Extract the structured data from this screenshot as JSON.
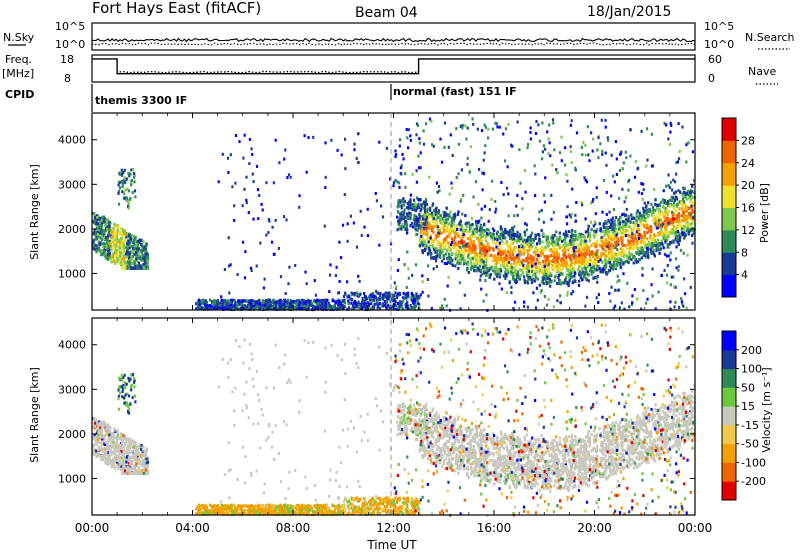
{
  "header": {
    "title": "Fort Hays East (fitACF)",
    "beam": "Beam 04",
    "date": "18/Jan/2015"
  },
  "top_panels": {
    "nsky_label": "N.Sky",
    "nsky_ticks": [
      "10^5",
      "10^0"
    ],
    "nsearch_label": "N.Search",
    "nsearch_ticks": [
      "10^5",
      "10^0"
    ],
    "freq_label": "Freq.",
    "freq_unit": "[MHz]",
    "freq_ticks": [
      "18",
      "8"
    ],
    "nave_label": "Nave",
    "nave_ticks": [
      "60",
      "0"
    ],
    "cpid_label": "CPID",
    "cpid_modes": [
      {
        "name": "themis 3300 IF",
        "start_hour": 0,
        "end_hour": 12
      },
      {
        "name": "normal (fast) 151 IF",
        "start_hour": 12,
        "end_hour": 24
      }
    ],
    "freq_series": [
      {
        "start_hour": 0,
        "end_hour": 1.0,
        "freq_mhz": 16.5
      },
      {
        "start_hour": 1.0,
        "end_hour": 13.0,
        "freq_mhz": 10.8
      },
      {
        "start_hour": 13.0,
        "end_hour": 24,
        "freq_mhz": 16.5
      }
    ]
  },
  "chart_data": [
    {
      "type": "heatmap",
      "name": "power",
      "ylabel": "Slant Range [km]",
      "yticks": [
        1000,
        2000,
        3000,
        4000
      ],
      "ylim": [
        180,
        4600
      ],
      "xlim_hours": [
        0,
        24
      ],
      "colorbar_label": "Power [dB]",
      "colorbar_ticks": [
        "28",
        "24",
        "20",
        "16",
        "12",
        "8",
        "4"
      ],
      "colorbar_colors": [
        "#0000ff",
        "#1a3a9a",
        "#2e8b57",
        "#7ec850",
        "#f2e02e",
        "#f5a000",
        "#f06400",
        "#e00000"
      ],
      "features": [
        {
          "hours": [
            0.0,
            2.2
          ],
          "range_km": [
            1200,
            2600
          ],
          "peak_db": 18
        },
        {
          "hours": [
            13.0,
            23.9
          ],
          "range_km": [
            1050,
            2700
          ],
          "peak_db": 24
        },
        {
          "hours": [
            4.0,
            13.0
          ],
          "range_km": [
            180,
            500
          ],
          "peak_db": 8
        }
      ]
    },
    {
      "type": "heatmap",
      "name": "velocity",
      "ylabel": "Slant Range [km]",
      "yticks": [
        1000,
        2000,
        3000,
        4000
      ],
      "ylim": [
        180,
        4600
      ],
      "xlim_hours": [
        0,
        24
      ],
      "xlabel": "Time UT",
      "xtick_labels": [
        "00:00",
        "04:00",
        "08:00",
        "12:00",
        "16:00",
        "20:00",
        "00:00"
      ],
      "colorbar_label": "Velocity [m s⁻¹]",
      "colorbar_ticks": [
        "200",
        "100",
        "50",
        "15",
        "-15",
        "-50",
        "-100",
        "-200"
      ],
      "colorbar_colors": [
        "#e00000",
        "#f06400",
        "#f5a000",
        "#f2c84a",
        "#c8c8be",
        "#6cc83c",
        "#2e8b57",
        "#1a3a9a",
        "#0000ff"
      ]
    }
  ],
  "colors": {
    "background": "#ffffff",
    "axis": "#000000",
    "grey_scatter": "#c8c8be",
    "dashed_line": "#999999"
  }
}
